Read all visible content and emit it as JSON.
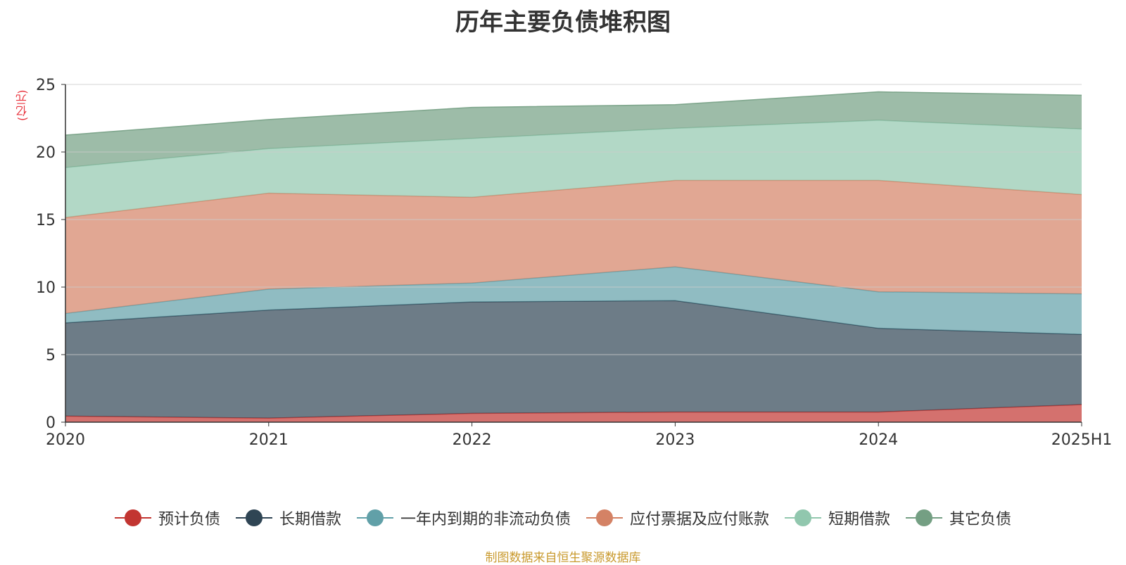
{
  "page_title": "历年主要负债堆积图",
  "unit": "(亿元)",
  "source": "制图数据来自恒生聚源数据库",
  "chart_data": {
    "type": "area",
    "stacked": true,
    "title": "历年主要负债堆积图",
    "ylabel": "(亿元)",
    "categories": [
      "2020",
      "2021",
      "2022",
      "2023",
      "2024",
      "2025H1"
    ],
    "ylim": [
      0,
      25
    ],
    "yticks": [
      0,
      5,
      10,
      15,
      20,
      25
    ],
    "grid": true,
    "legend_position": "bottom",
    "series": [
      {
        "name": "预计负债",
        "color": "#c23531",
        "values": [
          0.45,
          0.3,
          0.65,
          0.75,
          0.75,
          1.3
        ]
      },
      {
        "name": "长期借款",
        "color": "#2f4554",
        "values": [
          6.9,
          8.0,
          8.25,
          8.25,
          6.2,
          5.2
        ]
      },
      {
        "name": "一年内到期的非流动负债",
        "color": "#61a0a8",
        "values": [
          0.7,
          1.55,
          1.4,
          2.5,
          2.7,
          3.0
        ]
      },
      {
        "name": "应付票据及应付账款",
        "color": "#d48265",
        "values": [
          7.1,
          7.1,
          6.35,
          6.4,
          8.25,
          7.35
        ]
      },
      {
        "name": "短期借款",
        "color": "#91c7ae",
        "values": [
          3.7,
          3.3,
          4.35,
          3.85,
          4.45,
          4.85
        ]
      },
      {
        "name": "其它负债",
        "color": "#749f83",
        "values": [
          2.4,
          2.15,
          2.3,
          1.75,
          2.1,
          2.5
        ]
      }
    ]
  }
}
